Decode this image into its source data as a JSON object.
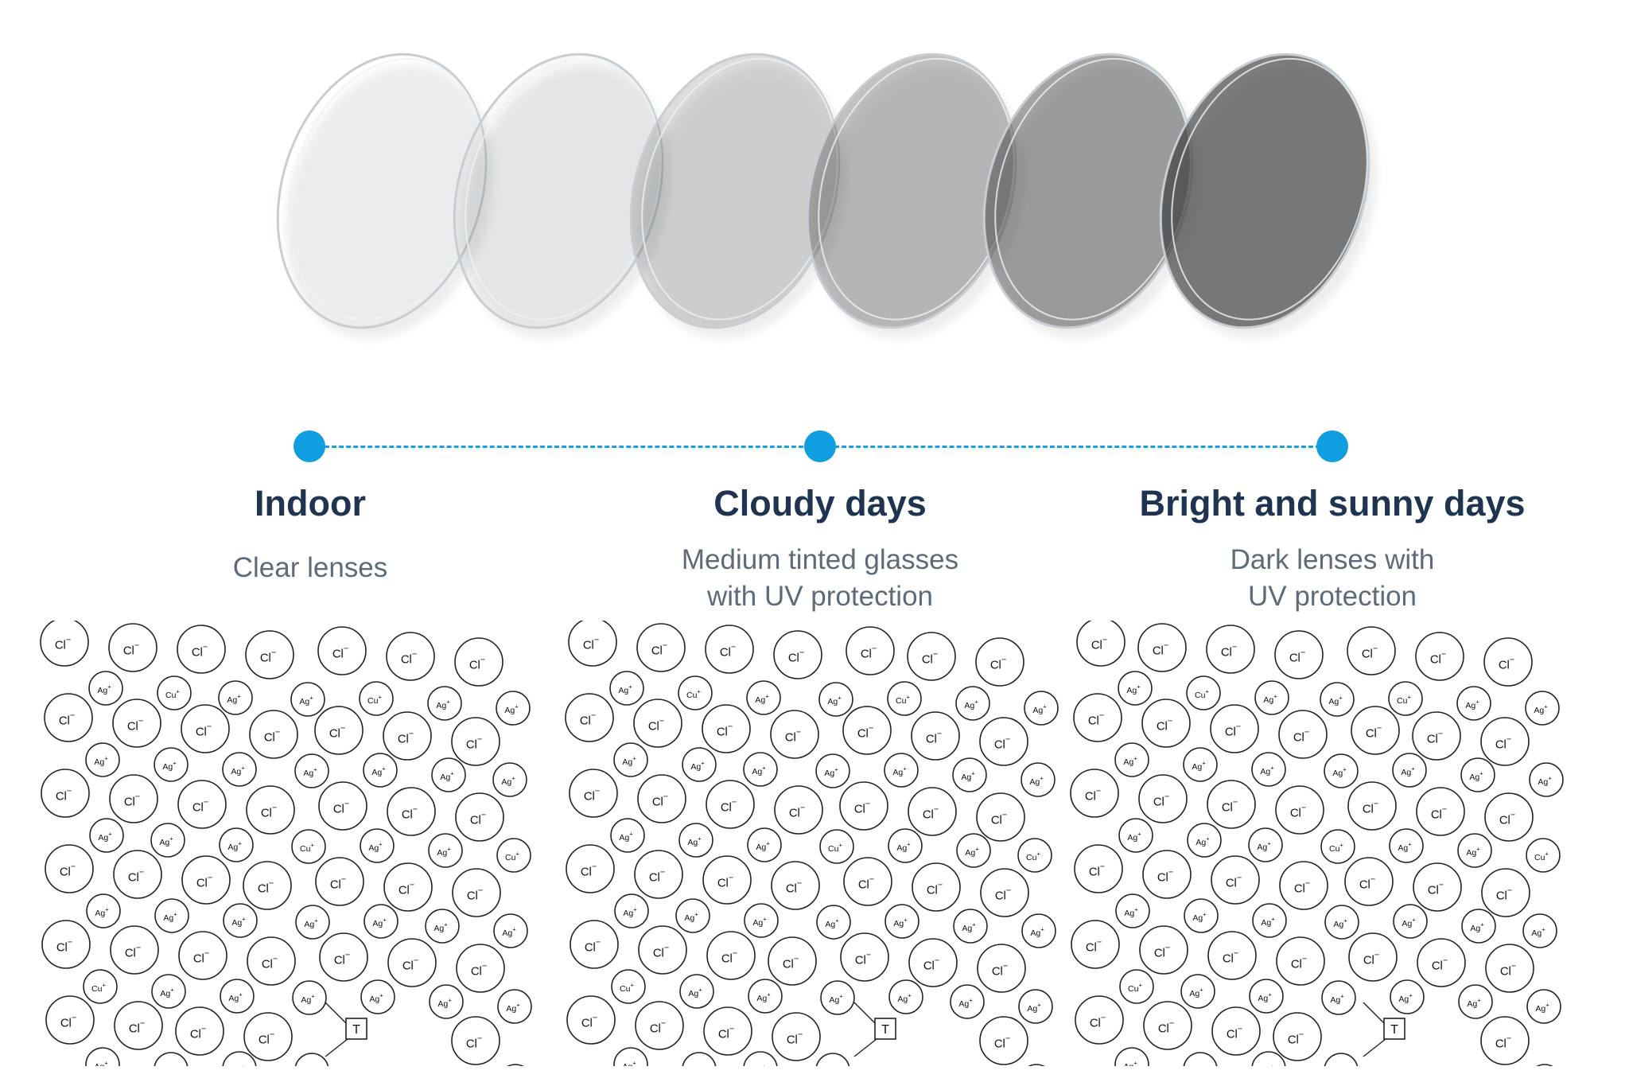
{
  "lenses": {
    "count": 6,
    "tint_levels": [
      0.0,
      0.04,
      0.18,
      0.32,
      0.48,
      0.68
    ],
    "accent_color": "#0f9ee0",
    "lens_color": "#404040"
  },
  "timeline": {
    "dot_color": "#0f9ee0",
    "stages": [
      {
        "title": "Indoor",
        "description_lines": [
          "Clear lenses"
        ]
      },
      {
        "title": "Cloudy days",
        "description_lines": [
          "Medium tinted glasses",
          "with UV protection"
        ]
      },
      {
        "title": "Bright and sunny days",
        "description_lines": [
          "Dark lenses with",
          "UV protection"
        ]
      }
    ]
  },
  "crystal": {
    "chloride_label": "Cl",
    "chloride_charge": "−",
    "silver_label": "Ag",
    "silver_charge": "+",
    "copper_label": "Cu",
    "copper_charge": "+",
    "trap_label": "T"
  }
}
